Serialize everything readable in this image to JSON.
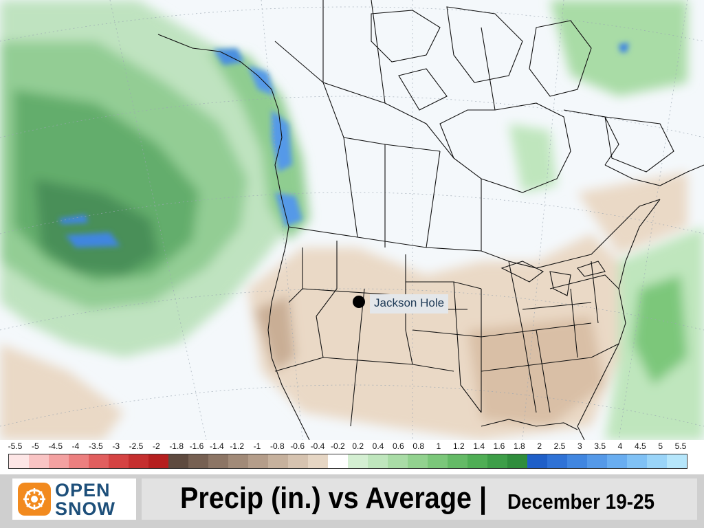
{
  "map": {
    "marker_label": "Jackson Hole"
  },
  "legend": {
    "labels": [
      "-5.5",
      "-5",
      "-4.5",
      "-4",
      "-3.5",
      "-3",
      "-2.5",
      "-2",
      "-1.8",
      "-1.6",
      "-1.4",
      "-1.2",
      "-1",
      "-0.8",
      "-0.6",
      "-0.4",
      "-0.2",
      "0.2",
      "0.4",
      "0.6",
      "0.8",
      "1",
      "1.2",
      "1.4",
      "1.6",
      "1.8",
      "2",
      "2.5",
      "3",
      "3.5",
      "4",
      "4.5",
      "5",
      "5.5"
    ],
    "colors": [
      "#fde6e6",
      "#f9c4c4",
      "#f3a1a1",
      "#ec7f7f",
      "#e15e5e",
      "#d54343",
      "#c52f2f",
      "#b51f1f",
      "#5e4a3f",
      "#766052",
      "#8c7565",
      "#a18a78",
      "#b49d8a",
      "#c6b19d",
      "#d6c3b0",
      "#e6d6c4",
      "#ffffff",
      "#d4efd2",
      "#bfe6bd",
      "#a9dca6",
      "#92d28f",
      "#7bc77a",
      "#64ba66",
      "#4fae55",
      "#3d9e48",
      "#2f8d3c",
      "#1f5fc8",
      "#2f72d6",
      "#4186e0",
      "#5599e8",
      "#69adf0",
      "#80c1f5",
      "#9ad4f8",
      "#b6e6fb"
    ]
  },
  "logo": {
    "line1": "OPEN",
    "line2": "SNOW"
  },
  "title": {
    "main": "Precip (in.) vs Average",
    "separator": "|",
    "date_range": "December 19-25"
  }
}
